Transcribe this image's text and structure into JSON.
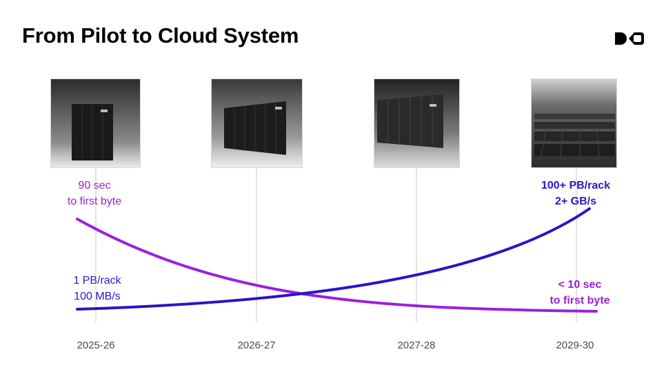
{
  "title": "From Pilot to Cloud System",
  "logo": {
    "icon": "dd-logo-icon",
    "color": "#000000"
  },
  "colors": {
    "purple_curve": "#9a20e0",
    "blue_curve": "#2a14c8",
    "gridline": "#c8c8c8"
  },
  "stages": [
    {
      "year": "2025-26",
      "image": "single-rack-image"
    },
    {
      "year": "2026-27",
      "image": "row-of-racks-image"
    },
    {
      "year": "2027-28",
      "image": "rack-cluster-image"
    },
    {
      "year": "2029-30",
      "image": "datacenter-hall-image"
    }
  ],
  "annotations": {
    "latency_start": {
      "line1": "90 sec",
      "line2": "to first byte"
    },
    "capacity_start": {
      "line1": "1 PB/rack",
      "line2": "100 MB/s"
    },
    "capacity_end": {
      "line1": "100+ PB/rack",
      "line2": "2+ GB/s"
    },
    "latency_end": {
      "line1": "< 10 sec",
      "line2": "to first byte"
    }
  },
  "curves": [
    {
      "name": "latency",
      "trend": "decreasing",
      "color": "#9a20e0"
    },
    {
      "name": "capacity",
      "trend": "increasing",
      "color": "#2a14c8"
    }
  ]
}
